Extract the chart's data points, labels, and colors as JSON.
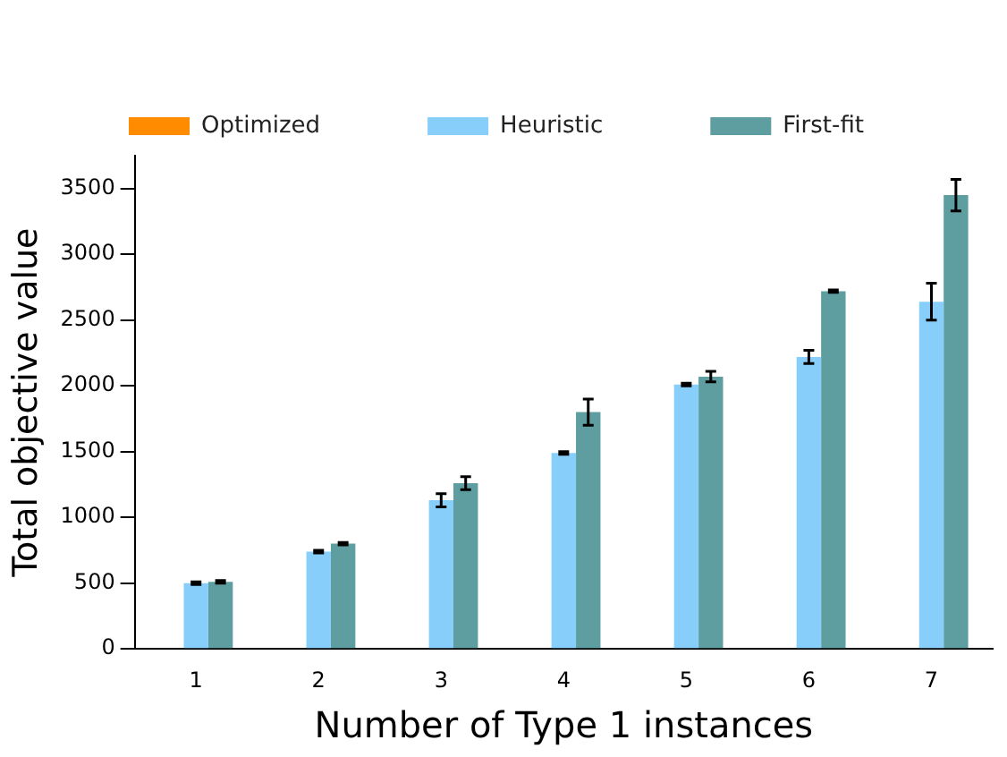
{
  "chart_data": {
    "type": "bar",
    "xlabel": "Number of Type 1 instances",
    "ylabel": "Total objective value",
    "categories": [
      "1",
      "2",
      "3",
      "4",
      "5",
      "6",
      "7"
    ],
    "series": [
      {
        "name": "Optimized",
        "color": "#ff8c00",
        "values": [
          0,
          0,
          0,
          0,
          0,
          0,
          0
        ]
      },
      {
        "name": "Heuristic",
        "color": "#87cefa",
        "values": [
          500,
          740,
          1130,
          1490,
          2010,
          2220,
          2640
        ],
        "errors": [
          10,
          10,
          50,
          10,
          10,
          50,
          140
        ]
      },
      {
        "name": "First-fit",
        "color": "#5f9ea0",
        "values": [
          510,
          800,
          1260,
          1800,
          2070,
          2720,
          3450
        ],
        "errors": [
          10,
          10,
          50,
          100,
          40,
          10,
          120
        ]
      }
    ],
    "ylim": [
      0,
      3750
    ],
    "yticks": [
      0,
      500,
      1000,
      1500,
      2000,
      2500,
      3000,
      3500
    ],
    "grid": false,
    "legend": "top"
  }
}
